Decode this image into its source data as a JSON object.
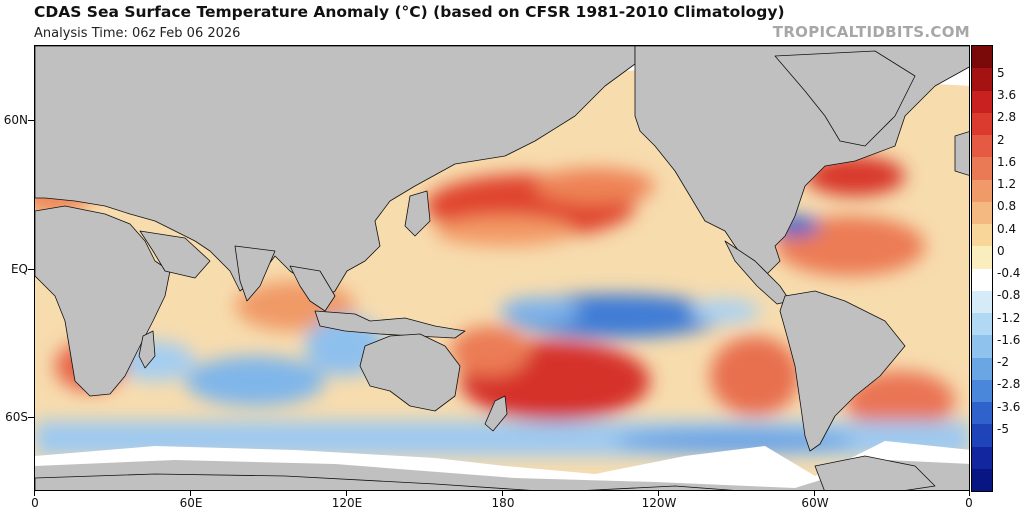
{
  "header": {
    "title": "CDAS Sea Surface Temperature Anomaly (°C) (based on CFSR 1981-2010 Climatology)",
    "subtitle": "Analysis Time: 06z Feb 06 2026",
    "credit": "TROPICALTIDBITS.COM"
  },
  "map": {
    "lat_labels": [
      "60N",
      "EQ",
      "60S"
    ],
    "lon_labels": [
      "0",
      "60E",
      "120E",
      "180",
      "120W",
      "60W",
      "0"
    ],
    "land_color": "#c0c0c0",
    "coast_color": "#000000"
  },
  "colorbar": {
    "labels": [
      "5",
      "3.6",
      "2.8",
      "2",
      "1.6",
      "1.2",
      "0.8",
      "0.4",
      "0",
      "-0.4",
      "-0.8",
      "-1.2",
      "-1.6",
      "-2",
      "-2.8",
      "-3.6",
      "-5"
    ],
    "colors": [
      "#7a0a0a",
      "#a51212",
      "#c92020",
      "#db3a2e",
      "#e45a42",
      "#ea7a56",
      "#f09a6a",
      "#f4b980",
      "#f8d598",
      "#fbeebe",
      "#ffffff",
      "#d5ebf8",
      "#b2d9f3",
      "#8fc3ed",
      "#6aa6e3",
      "#4a86d9",
      "#2f63cb",
      "#1f43b8",
      "#1226a0",
      "#081684"
    ]
  }
}
